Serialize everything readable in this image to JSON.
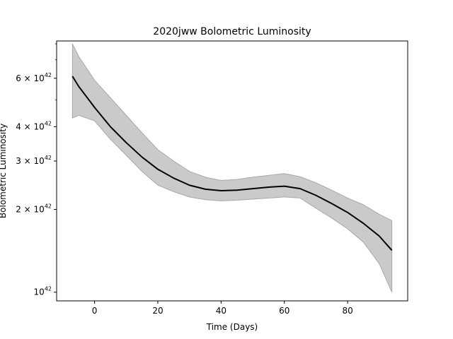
{
  "chart_data": {
    "type": "line",
    "title": "2020jww Bolometric Luminosity",
    "xlabel": "Time (Days)",
    "ylabel": "Bolometric Luminosity",
    "xlim": [
      -12,
      99
    ],
    "ylim": [
      9.3e+41,
      8.2e+42
    ],
    "yscale": "log",
    "grid": false,
    "x_ticks": [
      0,
      20,
      40,
      60,
      80
    ],
    "y_major_ticks": [
      {
        "value": 1e+42,
        "base": "10",
        "exp": "42"
      },
      {
        "value": 2e+42,
        "base": "2 × 10",
        "exp": "42"
      },
      {
        "value": 3e+42,
        "base": "3 × 10",
        "exp": "42"
      },
      {
        "value": 4e+42,
        "base": "4 × 10",
        "exp": "42"
      },
      {
        "value": 6e+42,
        "base": "6 × 10",
        "exp": "42"
      }
    ],
    "y_minor_ticks": [
      5e+42,
      7e+42,
      8e+42
    ],
    "line_color": "#000000",
    "band_color": "#cacaca",
    "band_edge_color": "#a8a8a8",
    "series": [
      {
        "x": [
          -7,
          -5,
          0,
          5,
          10,
          15,
          20,
          25,
          30,
          35,
          40,
          45,
          50,
          55,
          60,
          65,
          70,
          75,
          80,
          85,
          90,
          94
        ],
        "values": [
          6.1e+42,
          5.6e+42,
          4.7e+42,
          4e+42,
          3.5e+42,
          3.1e+42,
          2.8e+42,
          2.6e+42,
          2.45e+42,
          2.37e+42,
          2.34e+42,
          2.35e+42,
          2.38e+42,
          2.41e+42,
          2.43e+42,
          2.38e+42,
          2.25e+42,
          2.1e+42,
          1.95e+42,
          1.78e+42,
          1.6e+42,
          1.42e+42
        ],
        "upper": [
          8e+42,
          7.2e+42,
          5.9e+42,
          5.1e+42,
          4.4e+42,
          3.8e+42,
          3.3e+42,
          3e+42,
          2.75e+42,
          2.62e+42,
          2.55e+42,
          2.57e+42,
          2.62e+42,
          2.66e+42,
          2.7e+42,
          2.63e+42,
          2.5e+42,
          2.35e+42,
          2.2e+42,
          2.08e+42,
          1.92e+42,
          1.82e+42
        ],
        "lower": [
          4.3e+42,
          4.4e+42,
          4.2e+42,
          3.6e+42,
          3.15e+42,
          2.75e+42,
          2.45e+42,
          2.32e+42,
          2.22e+42,
          2.17e+42,
          2.15e+42,
          2.16e+42,
          2.18e+42,
          2.2e+42,
          2.22e+42,
          2.2e+42,
          2.02e+42,
          1.86e+42,
          1.7e+42,
          1.52e+42,
          1.27e+42,
          1e+42
        ]
      }
    ]
  }
}
